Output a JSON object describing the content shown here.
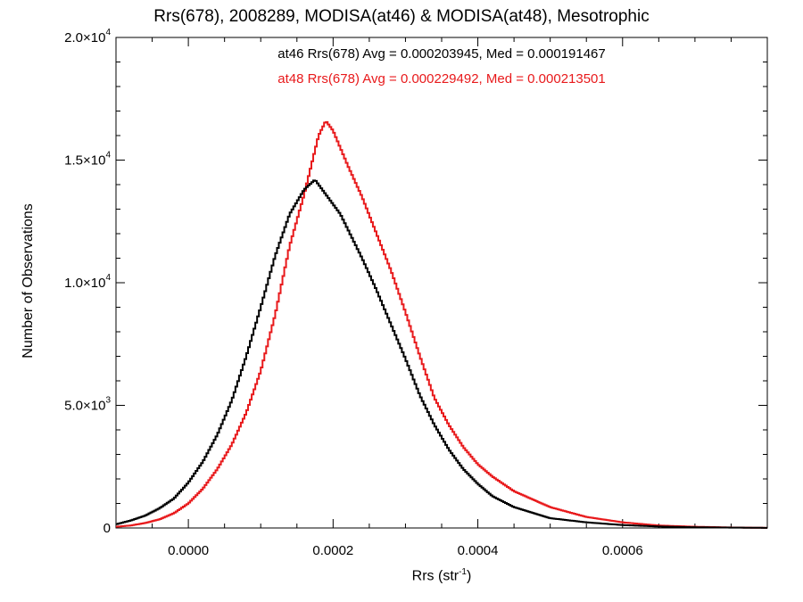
{
  "chart_data": {
    "type": "line",
    "step": true,
    "title": "Rrs(678), 2008289, MODISA(at46) & MODISA(at48), Mesotrophic",
    "xlabel": "Rrs (str",
    "xlabel_sup": "-1",
    "xlabel_close": ")",
    "ylabel": "Number of Observations",
    "xlim": [
      -0.0001,
      0.0008
    ],
    "ylim": [
      0,
      20000
    ],
    "grid": false,
    "x_ticks": [
      {
        "value": 0.0,
        "label": "0.0000"
      },
      {
        "value": 0.0002,
        "label": "0.0002"
      },
      {
        "value": 0.0004,
        "label": "0.0004"
      },
      {
        "value": 0.0006,
        "label": "0.0006"
      }
    ],
    "y_ticks": [
      {
        "value": 0,
        "mant": "0",
        "exp": ""
      },
      {
        "value": 5000,
        "mant": "5.0×10",
        "exp": "3"
      },
      {
        "value": 10000,
        "mant": "1.0×10",
        "exp": "4"
      },
      {
        "value": 15000,
        "mant": "1.5×10",
        "exp": "4"
      },
      {
        "value": 20000,
        "mant": "2.0×10",
        "exp": "4"
      }
    ],
    "annotations": {
      "at46": "at46 Rrs(678) Avg = 0.000203945, Med = 0.000191467",
      "at48": "at48 Rrs(678) Avg = 0.000229492, Med = 0.000213501"
    },
    "series": [
      {
        "color": "#000000",
        "x": [
          -0.0001,
          -8e-05,
          -6e-05,
          -4e-05,
          -2e-05,
          0.0,
          2e-05,
          4e-05,
          6e-05,
          8e-05,
          0.0001,
          0.00012,
          0.00014,
          0.00016,
          0.000175,
          0.00019,
          0.0002,
          0.00021,
          0.00022,
          0.00024,
          0.00026,
          0.00028,
          0.0003,
          0.00032,
          0.00034,
          0.00036,
          0.00038,
          0.0004,
          0.00042,
          0.00045,
          0.0005,
          0.00055,
          0.0006,
          0.00065,
          0.0007,
          0.00075,
          0.0008
        ],
        "y": [
          150,
          300,
          500,
          800,
          1200,
          1850,
          2700,
          3800,
          5200,
          7000,
          9000,
          11100,
          12800,
          13800,
          14200,
          13600,
          13200,
          12800,
          12200,
          11000,
          9700,
          8300,
          6900,
          5400,
          4200,
          3200,
          2400,
          1800,
          1300,
          850,
          400,
          230,
          120,
          60,
          30,
          15,
          5
        ]
      },
      {
        "color": "#e8191b",
        "x": [
          -0.0001,
          -8e-05,
          -6e-05,
          -4e-05,
          -2e-05,
          0.0,
          2e-05,
          4e-05,
          6e-05,
          8e-05,
          0.0001,
          0.00012,
          0.00014,
          0.00016,
          0.00017,
          0.00018,
          0.00019,
          0.0002,
          0.00021,
          0.00022,
          0.00024,
          0.00026,
          0.00028,
          0.0003,
          0.00032,
          0.00034,
          0.00036,
          0.00038,
          0.0004,
          0.00042,
          0.00045,
          0.0005,
          0.00055,
          0.0006,
          0.00065,
          0.0007,
          0.00075,
          0.0008
        ],
        "y": [
          50,
          100,
          200,
          350,
          600,
          1000,
          1600,
          2400,
          3400,
          4700,
          6400,
          8700,
          11500,
          13600,
          14800,
          16000,
          16600,
          16200,
          15500,
          14800,
          13500,
          12000,
          10500,
          8800,
          7000,
          5300,
          4200,
          3300,
          2600,
          2100,
          1500,
          850,
          450,
          230,
          100,
          50,
          20,
          5
        ]
      }
    ]
  }
}
